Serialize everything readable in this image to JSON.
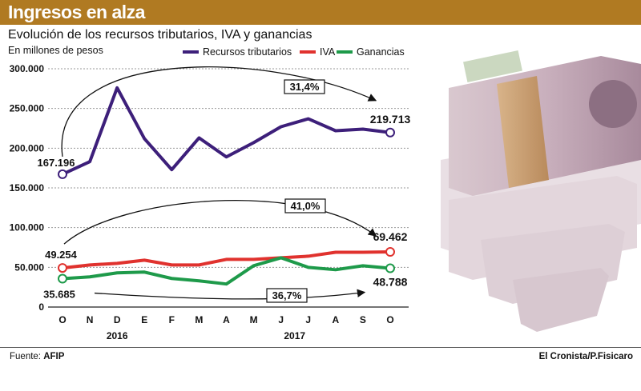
{
  "header": {
    "title": "Ingresos en alza"
  },
  "subtitle": "Evolución de los recursos tributarios, IVA y ganancias",
  "units": "En millones de pesos",
  "colors": {
    "header_bg": "#b07a22",
    "recursos": "#3d1f7a",
    "iva": "#e0322e",
    "ganancias": "#1e9a4a"
  },
  "chart_data": {
    "type": "line",
    "title": "Evolución de los recursos tributarios, IVA y ganancias",
    "ylabel": "En millones de pesos",
    "ylim": [
      0,
      300000
    ],
    "yticks": [
      "300.000",
      "250.000",
      "200.000",
      "150.000",
      "100.000",
      "50.000",
      "0"
    ],
    "ytick_values": [
      300000,
      250000,
      200000,
      150000,
      100000,
      50000,
      0
    ],
    "categories": [
      "O",
      "N",
      "D",
      "E",
      "F",
      "M",
      "A",
      "M",
      "J",
      "J",
      "A",
      "S",
      "O"
    ],
    "years": [
      {
        "label": "2016",
        "index": 2
      },
      {
        "label": "2017",
        "index": 8.5
      }
    ],
    "series": [
      {
        "name": "Recursos tributarios",
        "color": "#3d1f7a",
        "values": [
          167196,
          183000,
          276000,
          212000,
          173000,
          213000,
          189000,
          207000,
          227000,
          237000,
          222000,
          224000,
          219713
        ]
      },
      {
        "name": "IVA",
        "color": "#e0322e",
        "values": [
          49254,
          53000,
          55000,
          59000,
          53000,
          53000,
          60000,
          60000,
          62000,
          64000,
          69000,
          69000,
          69462
        ]
      },
      {
        "name": "Ganancias",
        "color": "#1e9a4a",
        "values": [
          35685,
          38000,
          43000,
          44000,
          36000,
          33000,
          29000,
          52000,
          62000,
          50000,
          47000,
          52000,
          48788
        ]
      }
    ],
    "point_labels": [
      {
        "text": "167.196"
      },
      {
        "text": "219.713"
      },
      {
        "text": "49.254"
      },
      {
        "text": "69.462"
      },
      {
        "text": "35.685"
      },
      {
        "text": "48.788"
      }
    ],
    "annotations": [
      {
        "text": "31,4%"
      },
      {
        "text": "41,0%"
      },
      {
        "text": "36,7%"
      }
    ]
  },
  "footer": {
    "source_label": "Fuente:",
    "source_value": "AFIP",
    "credit": "El Cronista/P.Fisicaro"
  }
}
